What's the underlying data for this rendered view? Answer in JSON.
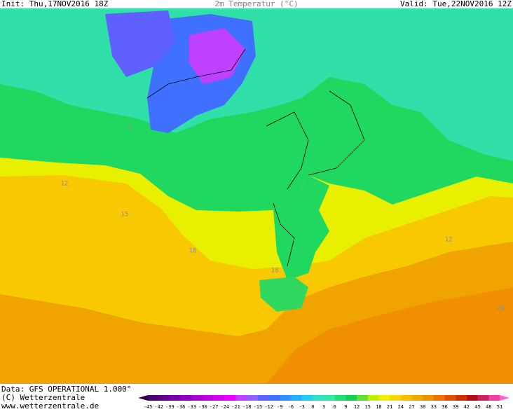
{
  "header": {
    "init": "Init: Thu,17NOV2016 18Z",
    "title": "2m Temperatur (°C)",
    "valid": "Valid: Tue,22NOV2016 12Z"
  },
  "footer": {
    "data": "Data: GFS OPERATIONAL 1.000°",
    "copyright": "(C) Wetterzentrale",
    "url": "www.wetterzentrale.de"
  },
  "map": {
    "contour_labels": [
      "9",
      "12",
      "15",
      "18",
      "18",
      "12",
      "24"
    ]
  },
  "legend": {
    "labels": [
      -45,
      -42,
      -39,
      -36,
      -33,
      -30,
      -27,
      -24,
      -21,
      -18,
      -15,
      -12,
      -9,
      -6,
      -3,
      0,
      3,
      6,
      9,
      12,
      15,
      18,
      21,
      24,
      27,
      30,
      33,
      36,
      39,
      42,
      45,
      48,
      51
    ],
    "colors": [
      "#30004a",
      "#4a0070",
      "#620090",
      "#7a00a8",
      "#9000c0",
      "#a800d0",
      "#c000e0",
      "#d800f0",
      "#f000ff",
      "#c040ff",
      "#9060ff",
      "#6060ff",
      "#4070ff",
      "#3090ff",
      "#20b0ff",
      "#20d0f0",
      "#30e0c0",
      "#30e8a0",
      "#20e070",
      "#10d050",
      "#60e030",
      "#c0f000",
      "#f0f000",
      "#f8d800",
      "#f8c000",
      "#f0a800",
      "#f09000",
      "#f07000",
      "#e05000",
      "#d03000",
      "#b01010",
      "#d02060",
      "#f040a0",
      "#ff60d0"
    ]
  }
}
